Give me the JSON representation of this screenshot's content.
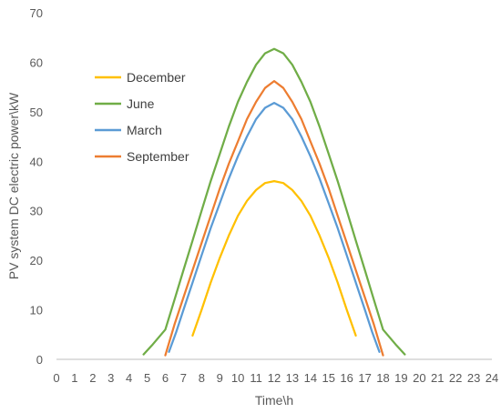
{
  "chart_data": {
    "type": "line",
    "xlabel": "Time\\h",
    "ylabel": "PV system DC electric power\\kW",
    "xlim": [
      0,
      24
    ],
    "ylim": [
      0,
      70
    ],
    "xticks": [
      0,
      1,
      2,
      3,
      4,
      5,
      6,
      7,
      8,
      9,
      10,
      11,
      12,
      13,
      14,
      15,
      16,
      17,
      18,
      19,
      20,
      21,
      22,
      23,
      24
    ],
    "yticks": [
      0,
      10,
      20,
      30,
      40,
      50,
      60,
      70
    ],
    "grid": false,
    "legend_position": "top-left inside plot",
    "series": [
      {
        "name": "December",
        "color": "#FFC000",
        "points": [
          [
            7.5,
            4.8
          ],
          [
            8,
            10
          ],
          [
            8.5,
            15.5
          ],
          [
            9,
            20.5
          ],
          [
            9.5,
            25
          ],
          [
            10,
            29
          ],
          [
            10.5,
            32
          ],
          [
            11,
            34.2
          ],
          [
            11.5,
            35.6
          ],
          [
            12,
            36
          ],
          [
            12.5,
            35.6
          ],
          [
            13,
            34.2
          ],
          [
            13.5,
            32
          ],
          [
            14,
            29
          ],
          [
            14.5,
            25
          ],
          [
            15,
            20.5
          ],
          [
            15.5,
            15.5
          ],
          [
            16,
            10
          ],
          [
            16.5,
            4.8
          ]
        ]
      },
      {
        "name": "June",
        "color": "#70AD47",
        "points": [
          [
            4.8,
            1
          ],
          [
            5.3,
            3
          ],
          [
            6,
            6
          ],
          [
            6.5,
            12
          ],
          [
            7,
            18
          ],
          [
            7.5,
            24
          ],
          [
            8,
            30
          ],
          [
            8.5,
            36
          ],
          [
            9,
            41.5
          ],
          [
            9.5,
            47
          ],
          [
            10,
            52
          ],
          [
            10.5,
            56
          ],
          [
            11,
            59.5
          ],
          [
            11.5,
            61.8
          ],
          [
            12,
            62.7
          ],
          [
            12.5,
            61.8
          ],
          [
            13,
            59.5
          ],
          [
            13.5,
            56
          ],
          [
            14,
            52
          ],
          [
            14.5,
            47
          ],
          [
            15,
            41.5
          ],
          [
            15.5,
            36
          ],
          [
            16,
            30
          ],
          [
            16.5,
            24
          ],
          [
            17,
            18
          ],
          [
            17.5,
            12
          ],
          [
            18,
            6
          ],
          [
            18.7,
            3
          ],
          [
            19.2,
            1
          ]
        ]
      },
      {
        "name": "March",
        "color": "#5B9BD5",
        "points": [
          [
            6.2,
            1.5
          ],
          [
            6.6,
            5.5
          ],
          [
            7,
            10
          ],
          [
            7.5,
            15.5
          ],
          [
            8,
            21
          ],
          [
            8.5,
            26.5
          ],
          [
            9,
            31.5
          ],
          [
            9.5,
            36.5
          ],
          [
            10,
            41
          ],
          [
            10.5,
            45
          ],
          [
            11,
            48.5
          ],
          [
            11.5,
            50.8
          ],
          [
            12,
            51.8
          ],
          [
            12.5,
            50.8
          ],
          [
            13,
            48.5
          ],
          [
            13.5,
            45
          ],
          [
            14,
            41
          ],
          [
            14.5,
            36.5
          ],
          [
            15,
            31.5
          ],
          [
            15.5,
            26.5
          ],
          [
            16,
            21
          ],
          [
            16.5,
            15.5
          ],
          [
            17,
            10
          ],
          [
            17.4,
            5.5
          ],
          [
            17.8,
            1.5
          ]
        ]
      },
      {
        "name": "September",
        "color": "#ED7D31",
        "points": [
          [
            6,
            0.8
          ],
          [
            6.5,
            7
          ],
          [
            7,
            12.5
          ],
          [
            7.5,
            18
          ],
          [
            8,
            23.5
          ],
          [
            8.5,
            29
          ],
          [
            9,
            34.5
          ],
          [
            9.5,
            39.5
          ],
          [
            10,
            44
          ],
          [
            10.5,
            48.5
          ],
          [
            11,
            52
          ],
          [
            11.5,
            54.8
          ],
          [
            12,
            56.2
          ],
          [
            12.5,
            54.8
          ],
          [
            13,
            52
          ],
          [
            13.5,
            48.5
          ],
          [
            14,
            44
          ],
          [
            14.5,
            39.5
          ],
          [
            15,
            34.5
          ],
          [
            15.5,
            29
          ],
          [
            16,
            23.5
          ],
          [
            16.5,
            18
          ],
          [
            17,
            12.5
          ],
          [
            17.5,
            7
          ],
          [
            18,
            0.8
          ]
        ]
      }
    ]
  }
}
